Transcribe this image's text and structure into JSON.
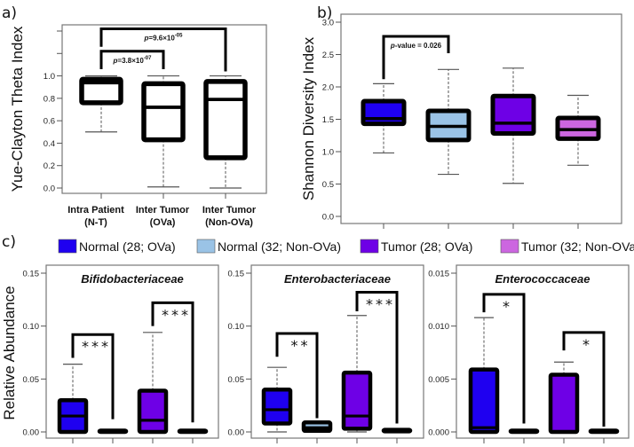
{
  "chart_data": [
    {
      "id": "a",
      "type": "boxplot",
      "panel_label": "a)",
      "ylabel": "Yue-Clayton Theta Index",
      "ylim": [
        0,
        1.4
      ],
      "yticks": [
        0.0,
        0.2,
        0.4,
        0.6,
        0.8,
        1.0,
        1.2,
        1.4
      ],
      "ytick_labels": [
        "0.0",
        "0.2",
        "0.4",
        "0.6",
        "0.8",
        "1.0",
        "",
        ""
      ],
      "categories": [
        {
          "line1": "Intra Patient",
          "line2": "(N-T)"
        },
        {
          "line1": "Inter Tumor",
          "line2": "(OVa)"
        },
        {
          "line1": "Inter Tumor",
          "line2": "(Non-OVa)"
        }
      ],
      "boxes": [
        {
          "min": 0.5,
          "q1": 0.76,
          "median": 0.94,
          "q3": 0.97,
          "max": 1.0,
          "color": "#ffffff"
        },
        {
          "min": 0.01,
          "q1": 0.43,
          "median": 0.72,
          "q3": 0.93,
          "max": 1.0,
          "color": "#ffffff"
        },
        {
          "min": 0.0,
          "q1": 0.27,
          "median": 0.79,
          "q3": 0.95,
          "max": 1.0,
          "color": "#ffffff"
        }
      ],
      "annotations": [
        {
          "from": 0,
          "to": 1,
          "level": 1.22,
          "left_drop": 1.06,
          "right_drop": 1.06,
          "p_prefix": "p",
          "p_text": "=3.8×10",
          "p_exp": "-07"
        },
        {
          "from": 0,
          "to": 2,
          "level": 1.42,
          "left_drop": 1.26,
          "right_drop": 1.04,
          "p_prefix": "p",
          "p_text": "=9.6×10",
          "p_exp": "-05"
        }
      ]
    },
    {
      "id": "b",
      "type": "boxplot",
      "panel_label": "b)",
      "ylabel": "Shannon Diversity Index",
      "ylim": [
        0,
        3.0
      ],
      "yticks": [
        0.0,
        0.5,
        1.0,
        1.5,
        2.0,
        2.5,
        3.0
      ],
      "ytick_labels": [
        "0.0",
        "0.5",
        "1.0",
        "1.5",
        "2.0",
        "2.5",
        "3.0"
      ],
      "boxes": [
        {
          "min": 0.98,
          "q1": 1.43,
          "median": 1.51,
          "q3": 1.78,
          "max": 2.05,
          "color": "#1f00f0"
        },
        {
          "min": 0.65,
          "q1": 1.18,
          "median": 1.39,
          "q3": 1.63,
          "max": 2.27,
          "color": "#9ac3e6"
        },
        {
          "min": 0.51,
          "q1": 1.28,
          "median": 1.44,
          "q3": 1.86,
          "max": 2.29,
          "color": "#6e00e6"
        },
        {
          "min": 0.79,
          "q1": 1.2,
          "median": 1.34,
          "q3": 1.52,
          "max": 1.87,
          "color": "#cc66e0"
        }
      ],
      "annotations": [
        {
          "from": 0,
          "to": 1,
          "level": 2.78,
          "left_drop": 2.12,
          "right_drop": 2.52,
          "p_prefix": "p",
          "p_text": "-value = 0.026",
          "p_exp": ""
        }
      ]
    },
    {
      "id": "c1",
      "type": "boxplot",
      "panel_label": "c)",
      "ylabel": "Relative Abundance",
      "title": "Bifidobacteriaceae",
      "ylim": [
        0,
        0.15
      ],
      "yticks": [
        0.0,
        0.05,
        0.1,
        0.15
      ],
      "ytick_labels": [
        "0.00",
        "0.05",
        "0.10",
        "0.15"
      ],
      "boxes": [
        {
          "min": 0.0,
          "q1": 0.0,
          "median": 0.015,
          "q3": 0.03,
          "max": 0.064,
          "color": "#1f00f0"
        },
        {
          "min": 0.0,
          "q1": 0.0,
          "median": 0.0,
          "q3": 0.0,
          "max": 0.0,
          "color": "#9ac3e6"
        },
        {
          "min": 0.0,
          "q1": 0.0,
          "median": 0.011,
          "q3": 0.039,
          "max": 0.094,
          "color": "#6e00e6"
        },
        {
          "min": 0.0,
          "q1": 0.0,
          "median": 0.0,
          "q3": 0.0,
          "max": 0.0,
          "color": "#cc66e0"
        }
      ],
      "annotations": [
        {
          "from": 0,
          "to": 1,
          "level": 0.092,
          "left_drop": 0.07,
          "right_drop": 0.012,
          "stars": "***"
        },
        {
          "from": 2,
          "to": 3,
          "level": 0.122,
          "left_drop": 0.1,
          "right_drop": 0.009,
          "stars": "***"
        }
      ]
    },
    {
      "id": "c2",
      "type": "boxplot",
      "title": "Enterobacteriaceae",
      "ylim": [
        0,
        0.15
      ],
      "yticks": [
        0.0,
        0.05,
        0.1,
        0.15
      ],
      "ytick_labels": [
        "0.00",
        "0.05",
        "0.10",
        "0.15"
      ],
      "boxes": [
        {
          "min": 0.0,
          "q1": 0.008,
          "median": 0.021,
          "q3": 0.04,
          "max": 0.061,
          "color": "#1f00f0"
        },
        {
          "min": 0.0,
          "q1": 0.001,
          "median": 0.004,
          "q3": 0.009,
          "max": 0.01,
          "color": "#9ac3e6"
        },
        {
          "min": 0.0,
          "q1": 0.003,
          "median": 0.015,
          "q3": 0.056,
          "max": 0.11,
          "color": "#6e00e6"
        },
        {
          "min": 0.0,
          "q1": 0.0005,
          "median": 0.001,
          "q3": 0.002,
          "max": 0.002,
          "color": "#cc66e0"
        }
      ],
      "annotations": [
        {
          "from": 0,
          "to": 1,
          "level": 0.093,
          "left_drop": 0.071,
          "right_drop": 0.013,
          "stars": "**"
        },
        {
          "from": 2,
          "to": 3,
          "level": 0.132,
          "left_drop": 0.114,
          "right_drop": 0.008,
          "stars": "***"
        }
      ]
    },
    {
      "id": "c3",
      "type": "boxplot",
      "title": "Enterococcaceae",
      "ylim": [
        0,
        0.015
      ],
      "yticks": [
        0.0,
        0.005,
        0.01,
        0.015
      ],
      "ytick_labels": [
        "0.000",
        "0.005",
        "0.010",
        "0.015"
      ],
      "boxes": [
        {
          "min": 0.0,
          "q1": 0.0,
          "median": 0.0004,
          "q3": 0.0059,
          "max": 0.0108,
          "color": "#1f00f0"
        },
        {
          "min": 0.0,
          "q1": 0.0,
          "median": 0.0,
          "q3": 0.0,
          "max": 0.0,
          "color": "#9ac3e6"
        },
        {
          "min": 0.0,
          "q1": 0.0,
          "median": 0.0,
          "q3": 0.0054,
          "max": 0.0066,
          "color": "#6e00e6"
        },
        {
          "min": 0.0,
          "q1": 0.0,
          "median": 0.0,
          "q3": 0.0,
          "max": 0.0,
          "color": "#cc66e0"
        }
      ],
      "annotations": [
        {
          "from": 0,
          "to": 1,
          "level": 0.013,
          "left_drop": 0.0113,
          "right_drop": 0.0008,
          "stars": "*"
        },
        {
          "from": 2,
          "to": 3,
          "level": 0.0094,
          "left_drop": 0.0077,
          "right_drop": 0.0005,
          "stars": "*"
        }
      ]
    }
  ],
  "legend": {
    "items": [
      {
        "label": "Normal (28; OVa)",
        "color": "#1f00f0"
      },
      {
        "label": "Normal (32; Non-OVa)",
        "color": "#9ac3e6"
      },
      {
        "label": "Tumor (28; OVa)",
        "color": "#6e00e6"
      },
      {
        "label": "Tumor (32; Non-OVa)",
        "color": "#cc66e0"
      }
    ],
    "placement": "top-center of panel c"
  }
}
